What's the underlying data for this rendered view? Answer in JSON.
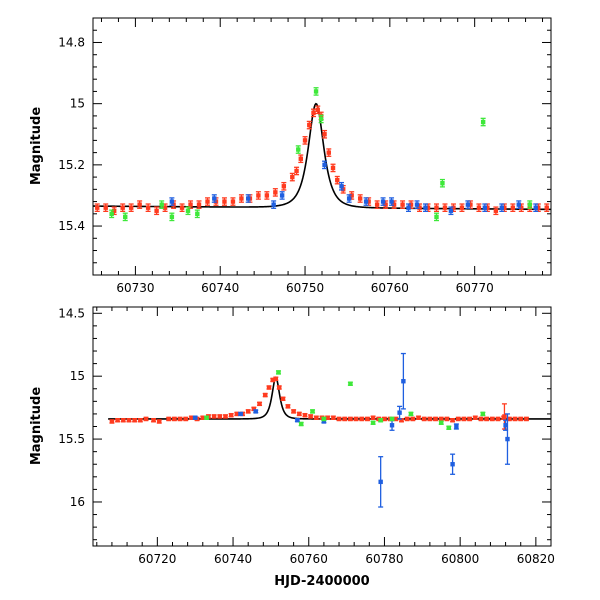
{
  "colors": {
    "model": "#000000",
    "red": "#ff3b1f",
    "blue": "#1f5fe0",
    "green": "#3ee83a"
  },
  "chart_data": [
    {
      "type": "scatter",
      "title": "",
      "xlabel": "",
      "ylabel": "Magnitude",
      "xlim": [
        60725,
        60779
      ],
      "ylim": [
        15.56,
        14.72
      ],
      "y_inverted": true,
      "xticks": [
        60730,
        60740,
        60750,
        60760,
        60770
      ],
      "yticks": [
        14.8,
        15,
        15.2,
        15.4
      ],
      "ytick_labels": [
        "14.8",
        "15",
        "15.2",
        "15.4"
      ],
      "model": {
        "baseline": 15.34,
        "peak_time": 60751.3,
        "peak_mag": 15.0,
        "tE": 1.1,
        "slope": 0.0002
      },
      "series": [
        {
          "color_key": "red",
          "x": [
            60725.5,
            60726.5,
            60727.5,
            60728.5,
            60729.5,
            60730.5,
            60731.5,
            60732.5,
            60733.5,
            60734.5,
            60735.5,
            60736.5,
            60737.5,
            60738.5,
            60739.5,
            60740.5,
            60741.5,
            60742.5,
            60743.5,
            60744.5,
            60745.5,
            60746.5,
            60747.5,
            60748.5,
            60749.0,
            60749.5,
            60750.0,
            60750.5,
            60751.0,
            60751.5,
            60751.9,
            60752.3,
            60752.8,
            60753.3,
            60753.8,
            60754.5,
            60755.5,
            60756.5,
            60757.5,
            60758.5,
            60759.5,
            60760.5,
            60761.5,
            60762.5,
            60763.5,
            60764.5,
            60765.5,
            60766.5,
            60767.5,
            60768.5,
            60769.5,
            60770.5,
            60771.5,
            60772.5,
            60773.5,
            60774.5,
            60775.5,
            60776.5,
            60777.5,
            60778.5
          ],
          "y": [
            15.34,
            15.34,
            15.35,
            15.34,
            15.34,
            15.33,
            15.34,
            15.35,
            15.34,
            15.33,
            15.34,
            15.33,
            15.33,
            15.32,
            15.32,
            15.32,
            15.32,
            15.31,
            15.31,
            15.3,
            15.3,
            15.29,
            15.27,
            15.24,
            15.22,
            15.18,
            15.12,
            15.07,
            15.03,
            15.02,
            15.04,
            15.1,
            15.16,
            15.21,
            15.25,
            15.28,
            15.3,
            15.31,
            15.32,
            15.33,
            15.33,
            15.33,
            15.33,
            15.33,
            15.34,
            15.34,
            15.34,
            15.34,
            15.34,
            15.34,
            15.33,
            15.34,
            15.34,
            15.35,
            15.34,
            15.34,
            15.34,
            15.34,
            15.34,
            15.34
          ],
          "err": 0.012
        },
        {
          "color_key": "blue",
          "x": [
            60734.3,
            60739.3,
            60743.3,
            60746.3,
            60747.3,
            60752.3,
            60754.3,
            60755.2,
            60757.2,
            60759.2,
            60760.2,
            60762.2,
            60763.2,
            60764.2,
            60767.2,
            60769.2,
            60771.2,
            60773.2,
            60775.2,
            60777.2
          ],
          "y": [
            15.32,
            15.31,
            15.31,
            15.33,
            15.3,
            15.2,
            15.27,
            15.31,
            15.32,
            15.32,
            15.32,
            15.34,
            15.33,
            15.34,
            15.35,
            15.33,
            15.34,
            15.34,
            15.33,
            15.34
          ],
          "err": 0.012
        },
        {
          "color_key": "green",
          "x": [
            60727.2,
            60728.8,
            60733.1,
            60734.3,
            60736.2,
            60737.3,
            60749.2,
            60751.3,
            60751.9,
            60765.5,
            60766.2,
            60771.0,
            60776.5
          ],
          "y": [
            15.36,
            15.37,
            15.33,
            15.37,
            15.35,
            15.36,
            15.15,
            14.96,
            15.05,
            15.37,
            15.26,
            15.06,
            15.33
          ],
          "err": 0.012
        }
      ]
    },
    {
      "type": "scatter",
      "title": "",
      "xlabel": "HJD-2400000",
      "ylabel": "Magnitude",
      "xlim": [
        60703,
        60824
      ],
      "ylim": [
        16.35,
        14.45
      ],
      "y_inverted": true,
      "xticks": [
        60720,
        60740,
        60760,
        60780,
        60800,
        60820
      ],
      "yticks": [
        14.5,
        15,
        15.5,
        16
      ],
      "ytick_labels": [
        "14.5",
        "15",
        "15.5",
        "16"
      ],
      "model": {
        "baseline": 15.34,
        "peak_time": 60751.3,
        "peak_mag": 15.01,
        "tE": 1.2,
        "slope": 0.0,
        "x_start": 60707
      },
      "series": [
        {
          "color_key": "red",
          "x": [
            60708,
            60709.5,
            60711,
            60712.5,
            60714,
            60715.5,
            60717,
            60719,
            60720.5,
            60723,
            60724.5,
            60726,
            60727.5,
            60729,
            60730.5,
            60732,
            60733.5,
            60735,
            60736.5,
            60738,
            60739.5,
            60741,
            60742.5,
            60744,
            60745.5,
            60747,
            60748.5,
            60749.5,
            60750.5,
            60751.3,
            60752.2,
            60753.2,
            60754.5,
            60756,
            60757.5,
            60759,
            60760.5,
            60762,
            60763.5,
            60765,
            60766.5,
            60768,
            60769.5,
            60771,
            60772.5,
            60774,
            60775.5,
            60777,
            60778.5,
            60780,
            60781.5,
            60783,
            60784.5,
            60786,
            60787.5,
            60789,
            60790.5,
            60792,
            60793.5,
            60795,
            60796.5,
            60798,
            60799.5,
            60801,
            60802.5,
            60804,
            60805.5,
            60807,
            60808.5,
            60810,
            60811.5,
            60813,
            60814.5,
            60816,
            60817.5
          ],
          "y": [
            15.36,
            15.35,
            15.35,
            15.35,
            15.35,
            15.35,
            15.34,
            15.35,
            15.36,
            15.34,
            15.34,
            15.34,
            15.34,
            15.33,
            15.34,
            15.33,
            15.32,
            15.32,
            15.32,
            15.32,
            15.31,
            15.3,
            15.3,
            15.28,
            15.26,
            15.22,
            15.15,
            15.09,
            15.03,
            15.02,
            15.09,
            15.18,
            15.24,
            15.28,
            15.3,
            15.31,
            15.32,
            15.33,
            15.33,
            15.33,
            15.33,
            15.34,
            15.34,
            15.34,
            15.34,
            15.34,
            15.34,
            15.33,
            15.34,
            15.34,
            15.34,
            15.34,
            15.35,
            15.34,
            15.34,
            15.33,
            15.34,
            15.34,
            15.34,
            15.34,
            15.34,
            15.35,
            15.34,
            15.34,
            15.34,
            15.33,
            15.34,
            15.34,
            15.34,
            15.34,
            15.33,
            15.34,
            15.34,
            15.34,
            15.34
          ],
          "err": 0.012
        },
        {
          "color_key": "red",
          "x": [
            60811.7
          ],
          "y": [
            15.32
          ],
          "err": 0.1
        },
        {
          "color_key": "blue",
          "x": [
            60730,
            60742,
            60746,
            60757,
            60764,
            60779,
            60782,
            60784,
            60785,
            60798,
            60799,
            60812,
            60812.5
          ],
          "y": [
            15.33,
            15.3,
            15.28,
            15.35,
            15.36,
            15.84,
            15.39,
            15.29,
            15.04,
            15.7,
            15.4,
            15.39,
            15.5
          ],
          "err_list": [
            0.01,
            0.01,
            0.01,
            0.01,
            0.01,
            0.2,
            0.04,
            0.05,
            0.22,
            0.08,
            0.02,
            0.04,
            0.2
          ]
        },
        {
          "color_key": "green",
          "x": [
            60733,
            60752,
            60758,
            60761,
            60764,
            60771,
            60777,
            60779,
            60782,
            60787,
            60795,
            60797,
            60806
          ],
          "y": [
            15.33,
            14.97,
            15.38,
            15.28,
            15.34,
            15.06,
            15.37,
            15.35,
            15.34,
            15.3,
            15.37,
            15.41,
            15.3
          ],
          "err": 0.012
        }
      ]
    }
  ]
}
